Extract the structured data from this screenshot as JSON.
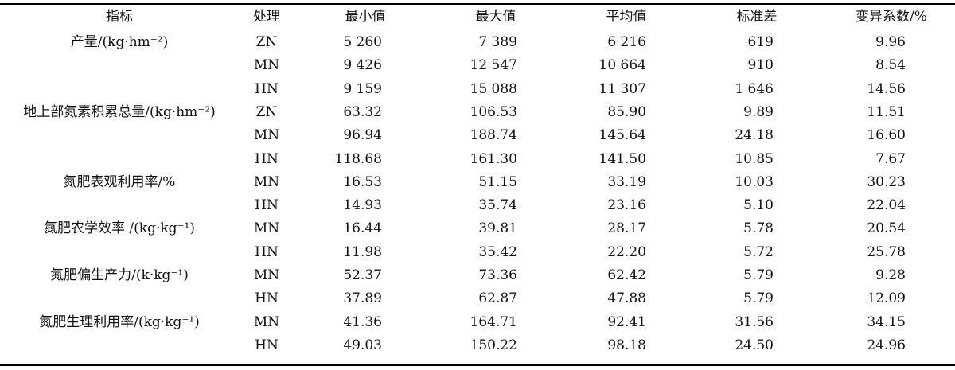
{
  "table": {
    "headers": [
      "指标",
      "处理",
      "最小值",
      "最大值",
      "平均值",
      "标准差",
      "变异系数/%"
    ],
    "indicators": [
      {
        "label": "产量/(kg·hm⁻²)"
      },
      {
        "label": "地上部氮素积累总量/(kg·hm⁻²)"
      },
      {
        "label": "氮肥表观利用率/%"
      },
      {
        "label": "氮肥农学效率 /(kg·kg⁻¹)"
      },
      {
        "label": "氮肥偏生产力/(k·kg⁻¹)"
      },
      {
        "label": "氮肥生理利用率/(kg·kg⁻¹)"
      }
    ],
    "rows": [
      {
        "treatment": "ZN",
        "min": "5 260",
        "max": "7 389",
        "mean": "6 216",
        "sd": "619",
        "cv": "9.96"
      },
      {
        "treatment": "MN",
        "min": "9 426",
        "max": "12 547",
        "mean": "10 664",
        "sd": "910",
        "cv": "8.54"
      },
      {
        "treatment": "HN",
        "min": "9 159",
        "max": "15 088",
        "mean": "11 307",
        "sd": "1 646",
        "cv": "14.56"
      },
      {
        "treatment": "ZN",
        "min": "63.32",
        "max": "106.53",
        "mean": "85.90",
        "sd": "9.89",
        "cv": "11.51"
      },
      {
        "treatment": "MN",
        "min": "96.94",
        "max": "188.74",
        "mean": "145.64",
        "sd": "24.18",
        "cv": "16.60"
      },
      {
        "treatment": "HN",
        "min": "118.68",
        "max": "161.30",
        "mean": "141.50",
        "sd": "10.85",
        "cv": "7.67"
      },
      {
        "treatment": "MN",
        "min": "16.53",
        "max": "51.15",
        "mean": "33.19",
        "sd": "10.03",
        "cv": "30.23"
      },
      {
        "treatment": "HN",
        "min": "14.93",
        "max": "35.74",
        "mean": "23.16",
        "sd": "5.10",
        "cv": "22.04"
      },
      {
        "treatment": "MN",
        "min": "16.44",
        "max": "39.81",
        "mean": "28.17",
        "sd": "5.78",
        "cv": "20.54"
      },
      {
        "treatment": "HN",
        "min": "11.98",
        "max": "35.42",
        "mean": "22.20",
        "sd": "5.72",
        "cv": "25.78"
      },
      {
        "treatment": "MN",
        "min": "52.37",
        "max": "73.36",
        "mean": "62.42",
        "sd": "5.79",
        "cv": "9.28"
      },
      {
        "treatment": "HN",
        "min": "37.89",
        "max": "62.87",
        "mean": "47.88",
        "sd": "5.79",
        "cv": "12.09"
      },
      {
        "treatment": "MN",
        "min": "41.36",
        "max": "164.71",
        "mean": "92.41",
        "sd": "31.56",
        "cv": "34.15"
      },
      {
        "treatment": "HN",
        "min": "49.03",
        "max": "150.22",
        "mean": "98.18",
        "sd": "24.50",
        "cv": "24.96"
      }
    ]
  }
}
